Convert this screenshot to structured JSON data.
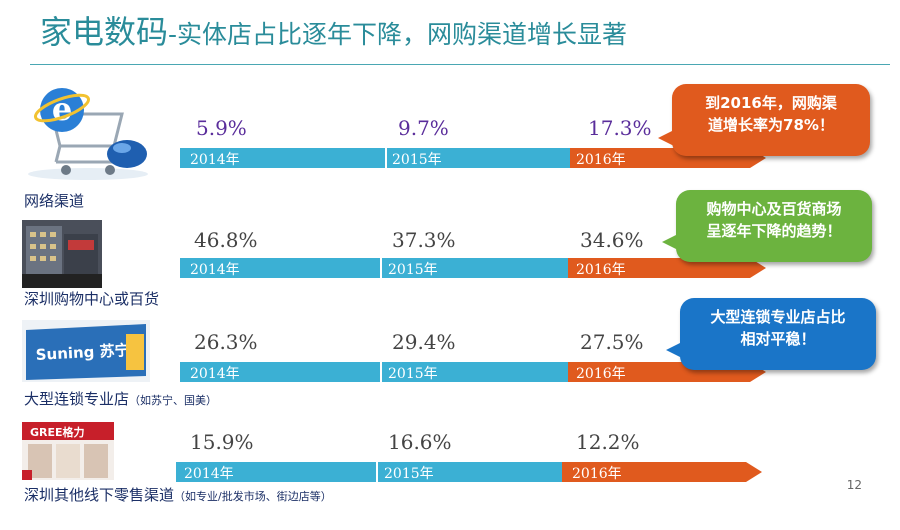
{
  "title": {
    "main": "家电数码",
    "sub": "-实体店占比逐年下降，网购渠道增长显著"
  },
  "colors": {
    "title": "#2a8c9a",
    "bar_blue": "#3bb0d4",
    "bar_orange": "#e05a1e",
    "value_purple": "#5a2d9b",
    "label_navy": "#1b2f66"
  },
  "rows": [
    {
      "label": "网络渠道",
      "label_note": "",
      "thumb": "ie-cart-mouse-icon",
      "values": [
        "5.9%",
        "9.7%",
        "17.3%"
      ],
      "years": [
        "2014年",
        "2015年",
        "2016年"
      ]
    },
    {
      "label": "深圳购物中心或百货",
      "label_note": "",
      "thumb": "mall-building-photo",
      "values": [
        "46.8%",
        "37.3%",
        "34.6%"
      ],
      "years": [
        "2014年",
        "2015年",
        "2016年"
      ]
    },
    {
      "label": "大型连锁专业店",
      "label_note": "（如苏宁、国美）",
      "thumb": "suning-store-photo",
      "values": [
        "26.3%",
        "29.4%",
        "27.5%"
      ],
      "years": [
        "2014年",
        "2015年",
        "2016年"
      ]
    },
    {
      "label": "深圳其他线下零售渠道",
      "label_note": "（如专业/批发市场、街边店等）",
      "thumb": "gree-store-photo",
      "values": [
        "15.9%",
        "16.6%",
        "12.2%"
      ],
      "years": [
        "2014年",
        "2015年",
        "2016年"
      ]
    }
  ],
  "logos": {
    "suning": "Suning 苏宁",
    "gree": "GREE格力"
  },
  "callouts": [
    {
      "text": "到2016年，网购渠道增长率为78%！",
      "line1": "到2016年，网购渠",
      "line2": "道增长率为78%！",
      "color": "#e05a1e"
    },
    {
      "text": "购物中心及百货商场呈逐年下降的趋势！",
      "line1": "购物中心及百货商场",
      "line2": "呈逐年下降的趋势！",
      "color": "#6cb33f"
    },
    {
      "text": "大型连锁专业店占比相对平稳！",
      "line1": "大型连锁专业店占比",
      "line2": "相对平稳！",
      "color": "#1a75c8"
    }
  ],
  "page_number": "12"
}
